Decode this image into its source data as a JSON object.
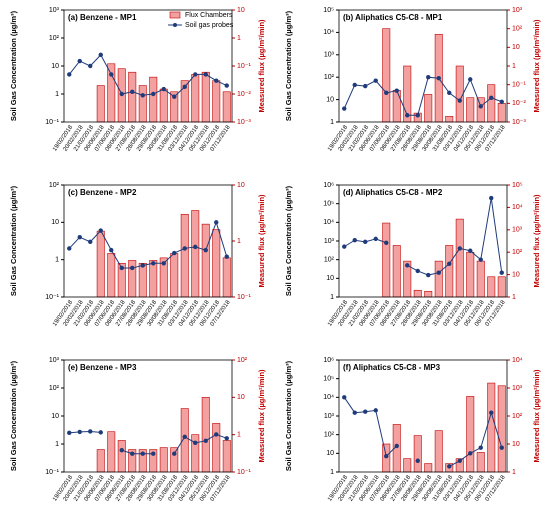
{
  "chart_data": [
    {
      "type": "combo",
      "title": "(a) Benzene - MP1",
      "legend": "upper right",
      "ylabel": "Soil Gas Concentration (µg/m³)",
      "y2label": "Measured flux (µg/m²/min)",
      "categories": [
        "19/02/2018",
        "20/02/2018",
        "21/02/2018",
        "06/06/2018",
        "07/06/2018",
        "08/06/2018",
        "27/08/2018",
        "28/08/2018",
        "29/08/2018",
        "30/08/2018",
        "31/08/2018",
        "03/12/2018",
        "04/12/2018",
        "05/12/2018",
        "06/12/2018",
        "07/12/2018"
      ],
      "ylim": [
        0.1,
        1000
      ],
      "yticks": [
        {
          "value": 0.1,
          "label": "10⁻¹"
        },
        1,
        10,
        {
          "value": 100,
          "label": "10²"
        },
        {
          "value": 1000,
          "label": "10³"
        }
      ],
      "y2lim": [
        0.001,
        10
      ],
      "y2ticks": [
        {
          "value": 0.001,
          "label": "10⁻³"
        },
        {
          "value": 0.01,
          "label": "10⁻²"
        },
        {
          "value": 0.1,
          "label": "10⁻¹"
        },
        1,
        10
      ],
      "series": [
        {
          "name": "Flux Chambers",
          "kind": "bar",
          "axis": "y2",
          "color": "#f2a0a0",
          "values": [
            null,
            null,
            null,
            0.02,
            0.12,
            0.08,
            0.06,
            0.02,
            0.04,
            0.015,
            0.012,
            0.03,
            0.05,
            0.06,
            0.03,
            0.012
          ]
        },
        {
          "name": "Soil gas probes",
          "kind": "line",
          "color": "#1f3b7a",
          "values": [
            5,
            15,
            10,
            25,
            5,
            1,
            1.2,
            0.9,
            1,
            1.5,
            0.8,
            1.8,
            5,
            5,
            3,
            2
          ]
        }
      ]
    },
    {
      "type": "combo",
      "title": "(b) Aliphatics C5-C8 - MP1",
      "ylabel": "Soil Gas Concentration (µg/m³)",
      "y2label": "Measured flux (µg/m²/min)",
      "categories": [
        "19/02/2018",
        "20/02/2018",
        "21/02/2018",
        "06/06/2018",
        "07/06/2018",
        "08/06/2018",
        "27/08/2018",
        "28/08/2018",
        "29/08/2018",
        "30/08/2018",
        "31/08/2018",
        "03/12/2018",
        "04/12/2018",
        "05/12/2018",
        "06/12/2018",
        "07/12/2018"
      ],
      "ylim": [
        1,
        100000
      ],
      "yticks": [
        1,
        10,
        {
          "value": 100,
          "label": "10²"
        },
        {
          "value": 1000,
          "label": "10³"
        },
        {
          "value": 10000,
          "label": "10⁴"
        },
        {
          "value": 100000,
          "label": "10⁵"
        }
      ],
      "y2lim": [
        0.001,
        1000
      ],
      "y2ticks": [
        {
          "value": 0.001,
          "label": "10⁻³"
        },
        {
          "value": 0.01,
          "label": "10⁻²"
        },
        {
          "value": 0.1,
          "label": "10⁻¹"
        },
        1,
        10,
        {
          "value": 100,
          "label": "10²"
        },
        {
          "value": 1000,
          "label": "10³"
        }
      ],
      "series": [
        {
          "name": "Flux Chambers",
          "kind": "bar",
          "axis": "y2",
          "color": "#f2a0a0",
          "values": [
            null,
            null,
            null,
            null,
            100,
            0.05,
            1,
            0.003,
            0.03,
            50,
            0.002,
            1,
            0.02,
            0.02,
            0.1,
            0.01
          ]
        },
        {
          "name": "Soil gas probes",
          "kind": "line",
          "color": "#1f3b7a",
          "values": [
            4,
            45,
            40,
            70,
            20,
            25,
            2,
            2,
            100,
            90,
            20,
            9,
            80,
            5,
            12,
            8
          ]
        }
      ]
    },
    {
      "type": "combo",
      "title": "(c) Benzene - MP2",
      "ylabel": "Soil Gas Concentration (µg/m³)",
      "y2label": "Measured flux (µg/m²/min)",
      "categories": [
        "19/02/2018",
        "20/02/2018",
        "21/02/2018",
        "06/06/2018",
        "07/06/2018",
        "08/06/2018",
        "27/08/2018",
        "28/08/2018",
        "29/08/2018",
        "30/08/2018",
        "31/08/2018",
        "03/12/2018",
        "04/12/2018",
        "05/12/2018",
        "06/12/2018",
        "07/12/2018"
      ],
      "ylim": [
        0.1,
        100
      ],
      "yticks": [
        {
          "value": 0.1,
          "label": "10⁻¹"
        },
        1,
        10,
        {
          "value": 100,
          "label": "10²"
        }
      ],
      "y2lim": [
        0.1,
        10
      ],
      "y2ticks": [
        {
          "value": 0.1,
          "label": "10⁻¹"
        },
        1,
        10
      ],
      "series": [
        {
          "name": "Flux Chambers",
          "kind": "bar",
          "axis": "y2",
          "color": "#f2a0a0",
          "values": [
            null,
            null,
            null,
            1.5,
            0.6,
            0.4,
            0.45,
            0.4,
            0.45,
            0.5,
            0.6,
            3,
            3.5,
            2,
            1.6,
            0.5
          ]
        },
        {
          "name": "Soil gas probes",
          "kind": "line",
          "color": "#1f3b7a",
          "values": [
            2,
            4,
            3,
            6,
            1.8,
            0.6,
            0.6,
            0.7,
            0.8,
            0.8,
            1.5,
            2,
            2.2,
            1.8,
            10,
            1.2
          ]
        }
      ]
    },
    {
      "type": "combo",
      "title": "(d) Aliphatics C5-C8 - MP2",
      "ylabel": "Soil Gas Concentration (µg/m³)",
      "y2label": "Measured flux (µg/m²/min)",
      "categories": [
        "19/02/2018",
        "20/02/2018",
        "21/02/2018",
        "06/06/2018",
        "07/06/2018",
        "08/06/2018",
        "27/08/2018",
        "28/08/2018",
        "29/08/2018",
        "30/08/2018",
        "31/08/2018",
        "03/12/2018",
        "04/12/2018",
        "05/12/2018",
        "06/12/2018",
        "07/12/2018"
      ],
      "ylim": [
        1,
        1000000
      ],
      "yticks": [
        1,
        10,
        {
          "value": 100,
          "label": "10²"
        },
        {
          "value": 1000,
          "label": "10³"
        },
        {
          "value": 10000,
          "label": "10⁴"
        },
        {
          "value": 100000,
          "label": "10⁵"
        },
        {
          "value": 1000000,
          "label": "10⁶"
        }
      ],
      "y2lim": [
        1,
        100000
      ],
      "y2ticks": [
        1,
        10,
        {
          "value": 100,
          "label": "10²"
        },
        {
          "value": 1000,
          "label": "10³"
        },
        {
          "value": 10000,
          "label": "10⁴"
        },
        {
          "value": 100000,
          "label": "10⁵"
        }
      ],
      "series": [
        {
          "name": "Flux Chambers",
          "kind": "bar",
          "axis": "y2",
          "color": "#f2a0a0",
          "values": [
            null,
            null,
            null,
            null,
            2000,
            200,
            40,
            2,
            1.8,
            40,
            200,
            3000,
            100,
            40,
            8,
            8
          ]
        },
        {
          "name": "Soil gas probes",
          "kind": "line",
          "color": "#1f3b7a",
          "values": [
            500,
            1100,
            900,
            1300,
            800,
            null,
            50,
            25,
            15,
            20,
            60,
            400,
            300,
            100,
            200000,
            20
          ]
        }
      ]
    },
    {
      "type": "combo",
      "title": "(e) Benzene - MP3",
      "ylabel": "Soil Gas Concentration (µg/m³)",
      "y2label": "Measured flux (µg/m²/min)",
      "categories": [
        "19/02/2018",
        "20/02/2018",
        "21/02/2018",
        "06/06/2018",
        "07/06/2018",
        "08/06/2018",
        "27/08/2018",
        "28/08/2018",
        "29/08/2018",
        "30/08/2018",
        "31/08/2018",
        "03/12/2018",
        "04/12/2018",
        "05/12/2018",
        "06/12/2018",
        "07/12/2018"
      ],
      "ylim": [
        0.1,
        1000
      ],
      "yticks": [
        {
          "value": 0.1,
          "label": "10⁻¹"
        },
        1,
        10,
        {
          "value": 100,
          "label": "10²"
        },
        {
          "value": 1000,
          "label": "10³"
        }
      ],
      "y2lim": [
        0.1,
        100
      ],
      "y2ticks": [
        {
          "value": 0.1,
          "label": "10⁻¹"
        },
        1,
        10,
        {
          "value": 100,
          "label": "10²"
        }
      ],
      "series": [
        {
          "name": "Flux Chambers",
          "kind": "bar",
          "axis": "y2",
          "color": "#f2a0a0",
          "values": [
            null,
            null,
            null,
            0.4,
            1.2,
            0.7,
            0.4,
            0.4,
            0.4,
            0.45,
            0.45,
            5,
            1,
            10,
            2,
            0.7
          ]
        },
        {
          "name": "Soil gas probes",
          "kind": "line",
          "color": "#1f3b7a",
          "values": [
            2.5,
            2.7,
            2.8,
            2.6,
            null,
            0.6,
            0.45,
            0.45,
            0.45,
            null,
            0.45,
            1.8,
            1.1,
            1.3,
            2.2,
            1.6
          ]
        }
      ]
    },
    {
      "type": "combo",
      "title": "(f) Aliphatics C5-C8 - MP3",
      "ylabel": "Soil Gas Concentration (µg/m³)",
      "y2label": "Measured flux (µg/m²/min)",
      "categories": [
        "19/02/2018",
        "20/02/2018",
        "21/02/2018",
        "06/06/2018",
        "07/06/2018",
        "08/06/2018",
        "27/08/2018",
        "28/08/2018",
        "29/08/2018",
        "30/08/2018",
        "31/08/2018",
        "03/12/2018",
        "04/12/2018",
        "05/12/2018",
        "06/12/2018",
        "07/12/2018"
      ],
      "ylim": [
        1,
        1000000
      ],
      "yticks": [
        1,
        10,
        {
          "value": 100,
          "label": "10²"
        },
        {
          "value": 1000,
          "label": "10³"
        },
        {
          "value": 10000,
          "label": "10⁴"
        },
        {
          "value": 100000,
          "label": "10⁵"
        },
        {
          "value": 1000000,
          "label": "10⁶"
        }
      ],
      "y2lim": [
        1,
        10000
      ],
      "y2ticks": [
        1,
        10,
        {
          "value": 100,
          "label": "10²"
        },
        {
          "value": 1000,
          "label": "10³"
        },
        {
          "value": 10000,
          "label": "10⁴"
        }
      ],
      "series": [
        {
          "name": "Flux Chambers",
          "kind": "bar",
          "axis": "y2",
          "color": "#f2a0a0",
          "values": [
            null,
            null,
            null,
            null,
            10,
            50,
            3,
            20,
            2,
            30,
            2,
            3,
            500,
            5,
            1500,
            1200
          ]
        },
        {
          "name": "Soil gas probes",
          "kind": "line",
          "color": "#1f3b7a",
          "values": [
            10000,
            1500,
            1700,
            2000,
            7,
            25,
            null,
            4,
            null,
            null,
            2,
            4,
            10,
            20,
            1500,
            20
          ]
        }
      ]
    }
  ]
}
